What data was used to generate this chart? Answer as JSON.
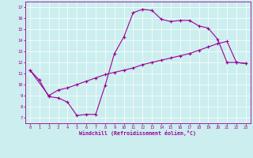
{
  "xlabel": "Windchill (Refroidissement éolien,°C)",
  "line1_x": [
    0,
    1,
    2,
    3,
    4,
    5,
    6,
    7,
    8,
    9,
    10,
    11,
    12,
    13,
    14,
    15,
    16,
    17,
    18,
    19,
    20,
    21,
    22,
    23
  ],
  "line1_y": [
    11.3,
    10.4,
    8.9,
    8.8,
    8.4,
    7.2,
    7.3,
    7.3,
    9.9,
    12.8,
    14.3,
    16.5,
    16.8,
    16.7,
    15.9,
    15.7,
    15.8,
    15.8,
    15.3,
    15.1,
    14.1,
    12.0,
    12.0,
    11.9
  ],
  "line2_x": [
    0,
    2,
    3,
    4,
    5,
    6,
    7,
    8,
    9,
    10,
    11,
    12,
    13,
    14,
    15,
    16,
    17,
    18,
    19,
    20,
    21,
    22,
    23
  ],
  "line2_y": [
    11.3,
    9.0,
    9.5,
    9.7,
    10.0,
    10.3,
    10.6,
    10.9,
    11.1,
    11.3,
    11.5,
    11.8,
    12.0,
    12.2,
    12.4,
    12.6,
    12.8,
    13.1,
    13.4,
    13.7,
    13.9,
    12.0,
    11.9
  ],
  "line_color": "#990099",
  "bg_color": "#cceeee",
  "grid_color": "#ffffff",
  "xlim": [
    -0.5,
    23.5
  ],
  "ylim": [
    6.5,
    17.5
  ],
  "xticks": [
    0,
    1,
    2,
    3,
    4,
    5,
    6,
    7,
    8,
    9,
    10,
    11,
    12,
    13,
    14,
    15,
    16,
    17,
    18,
    19,
    20,
    21,
    22,
    23
  ],
  "yticks": [
    7,
    8,
    9,
    10,
    11,
    12,
    13,
    14,
    15,
    16,
    17
  ],
  "marker": "+"
}
